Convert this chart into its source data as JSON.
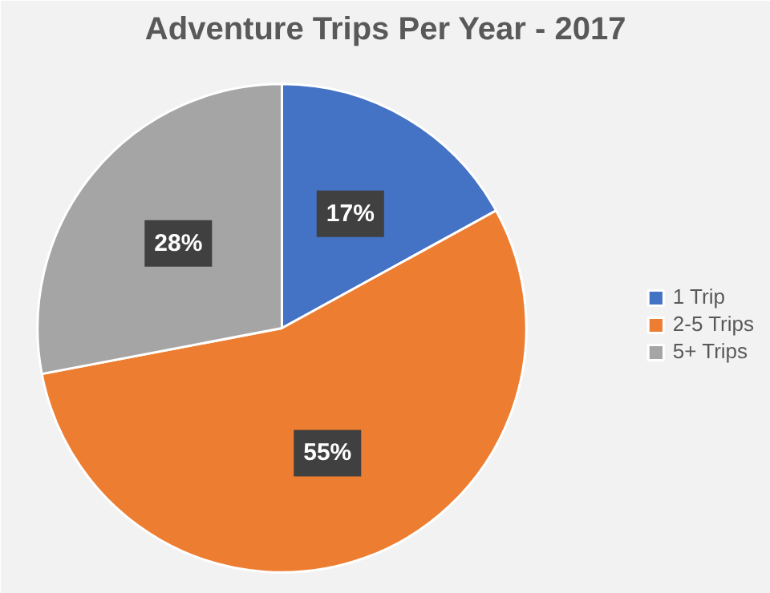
{
  "chart_data": {
    "type": "pie",
    "title": "Adventure Trips Per Year - 2017",
    "categories": [
      "1 Trip",
      "2-5 Trips",
      "5+ Trips"
    ],
    "values": [
      17,
      55,
      28
    ],
    "colors": [
      "#4472c4",
      "#ed7d31",
      "#a5a5a5"
    ],
    "value_labels": [
      "17%",
      "55%",
      "28%"
    ],
    "legend": "right"
  }
}
